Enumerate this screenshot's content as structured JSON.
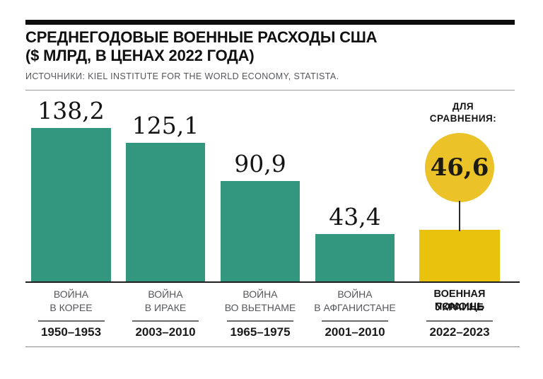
{
  "header": {
    "title_line1": "СРЕДНЕГОДОВЫЕ ВОЕННЫЕ РАСХОДЫ США",
    "title_line2": "($ МЛРД, В ЦЕНАХ 2022 ГОДА)",
    "source": "ИСТОЧНИКИ: KIEL INSTITUTE FOR THE WORLD ECONOMY, STATISTA."
  },
  "comparison": {
    "label_line1": "ДЛЯ",
    "label_line2": "СРАВНЕНИЯ:",
    "value": "46,6"
  },
  "colors": {
    "teal_bar": "#33977f",
    "yellow_bar": "#e8c20d",
    "yellow_circle": "#ebc328",
    "label_gray": "#55565a",
    "text_black": "#141414"
  },
  "chart_data": {
    "type": "bar",
    "title": "СРЕДНЕГОДОВЫЕ ВОЕННЫЕ РАСХОДЫ США ($ МЛРД, В ЦЕНАХ 2022 ГОДА)",
    "source": "ИСТОЧНИКИ: KIEL INSTITUTE FOR THE WORLD ECONOMY, STATISTA.",
    "unit": "$ млрд, в ценах 2022 года",
    "ylim": [
      0,
      140
    ],
    "grid": false,
    "legend": false,
    "columns": [
      {
        "value": 138.2,
        "value_label": "138,2",
        "label_line1": "ВОЙНА",
        "label_line2": "В КОРЕЕ",
        "years": "1950–1953",
        "color": "teal",
        "emphasis": false
      },
      {
        "value": 125.1,
        "value_label": "125,1",
        "label_line1": "ВОЙНА",
        "label_line2": "В ИРАКЕ",
        "years": "2003–2010",
        "color": "teal",
        "emphasis": false
      },
      {
        "value": 90.9,
        "value_label": "90,9",
        "label_line1": "ВОЙНА",
        "label_line2": "ВО ВЬЕТНАМЕ",
        "years": "1965–1975",
        "color": "teal",
        "emphasis": false
      },
      {
        "value": 43.4,
        "value_label": "43,4",
        "label_line1": "ВОЙНА",
        "label_line2": "В АФГАНИСТАНЕ",
        "years": "2001–2010",
        "color": "teal",
        "emphasis": false
      },
      {
        "value": 46.6,
        "value_label": "46,6",
        "label_line1": "ВОЕННАЯ ПОМОЩЬ",
        "label_line2": "УКРАИНЕ",
        "years": "2022–2023",
        "color": "yellow",
        "emphasis": true,
        "value_shown_in_circle": true
      }
    ]
  }
}
